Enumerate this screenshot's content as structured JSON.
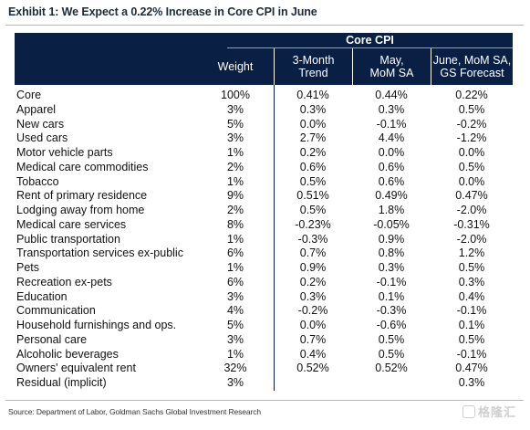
{
  "title": "Exhibit 1: We Expect a 0.22% Increase in Core CPI in June",
  "table": {
    "group_header": "Core CPI",
    "columns": [
      "Weight",
      "3-Month\nTrend",
      "May,\nMoM SA",
      "June, MoM SA,\nGS Forecast"
    ],
    "rows": [
      [
        "Core",
        "100%",
        "0.41%",
        "0.44%",
        "0.22%"
      ],
      [
        "Apparel",
        "3%",
        "0.3%",
        "0.3%",
        "0.5%"
      ],
      [
        "New cars",
        "5%",
        "0.0%",
        "-0.1%",
        "-0.2%"
      ],
      [
        "Used cars",
        "3%",
        "2.7%",
        "4.4%",
        "-1.2%"
      ],
      [
        "Motor vehicle parts",
        "1%",
        "0.2%",
        "0.0%",
        "0.0%"
      ],
      [
        "Medical care commodities",
        "2%",
        "0.6%",
        "0.6%",
        "0.5%"
      ],
      [
        "Tobacco",
        "1%",
        "0.5%",
        "0.6%",
        "0.0%"
      ],
      [
        "Rent of primary residence",
        "9%",
        "0.51%",
        "0.49%",
        "0.47%"
      ],
      [
        "Lodging away from home",
        "2%",
        "0.5%",
        "1.8%",
        "-2.0%"
      ],
      [
        "Medical care services",
        "8%",
        "-0.23%",
        "-0.05%",
        "-0.31%"
      ],
      [
        "Public transportation",
        "1%",
        "-0.3%",
        "0.9%",
        "-2.0%"
      ],
      [
        "Transportation services ex-public",
        "6%",
        "0.7%",
        "0.8%",
        "1.2%"
      ],
      [
        "Pets",
        "1%",
        "0.9%",
        "0.3%",
        "0.5%"
      ],
      [
        "Recreation ex-pets",
        "6%",
        "0.2%",
        "-0.1%",
        "0.3%"
      ],
      [
        "Education",
        "3%",
        "0.3%",
        "0.1%",
        "0.4%"
      ],
      [
        "Communication",
        "4%",
        "-0.2%",
        "-0.3%",
        "-0.1%"
      ],
      [
        "Household furnishings and ops.",
        "5%",
        "0.0%",
        "-0.6%",
        "0.1%"
      ],
      [
        "Personal care",
        "3%",
        "0.7%",
        "0.5%",
        "0.5%"
      ],
      [
        "Alcoholic beverages",
        "1%",
        "0.4%",
        "0.5%",
        "-0.1%"
      ],
      [
        "Owners' equivalent rent",
        "32%",
        "0.52%",
        "0.52%",
        "0.47%"
      ],
      [
        "Residual (implicit)",
        "3%",
        "",
        "",
        "0.3%"
      ]
    ]
  },
  "source": "Source: Department of Labor, Goldman Sachs Global Investment Research",
  "watermark": "格隆汇",
  "colors": {
    "header_bg": "#0a1f44",
    "header_text": "#ffffff"
  }
}
